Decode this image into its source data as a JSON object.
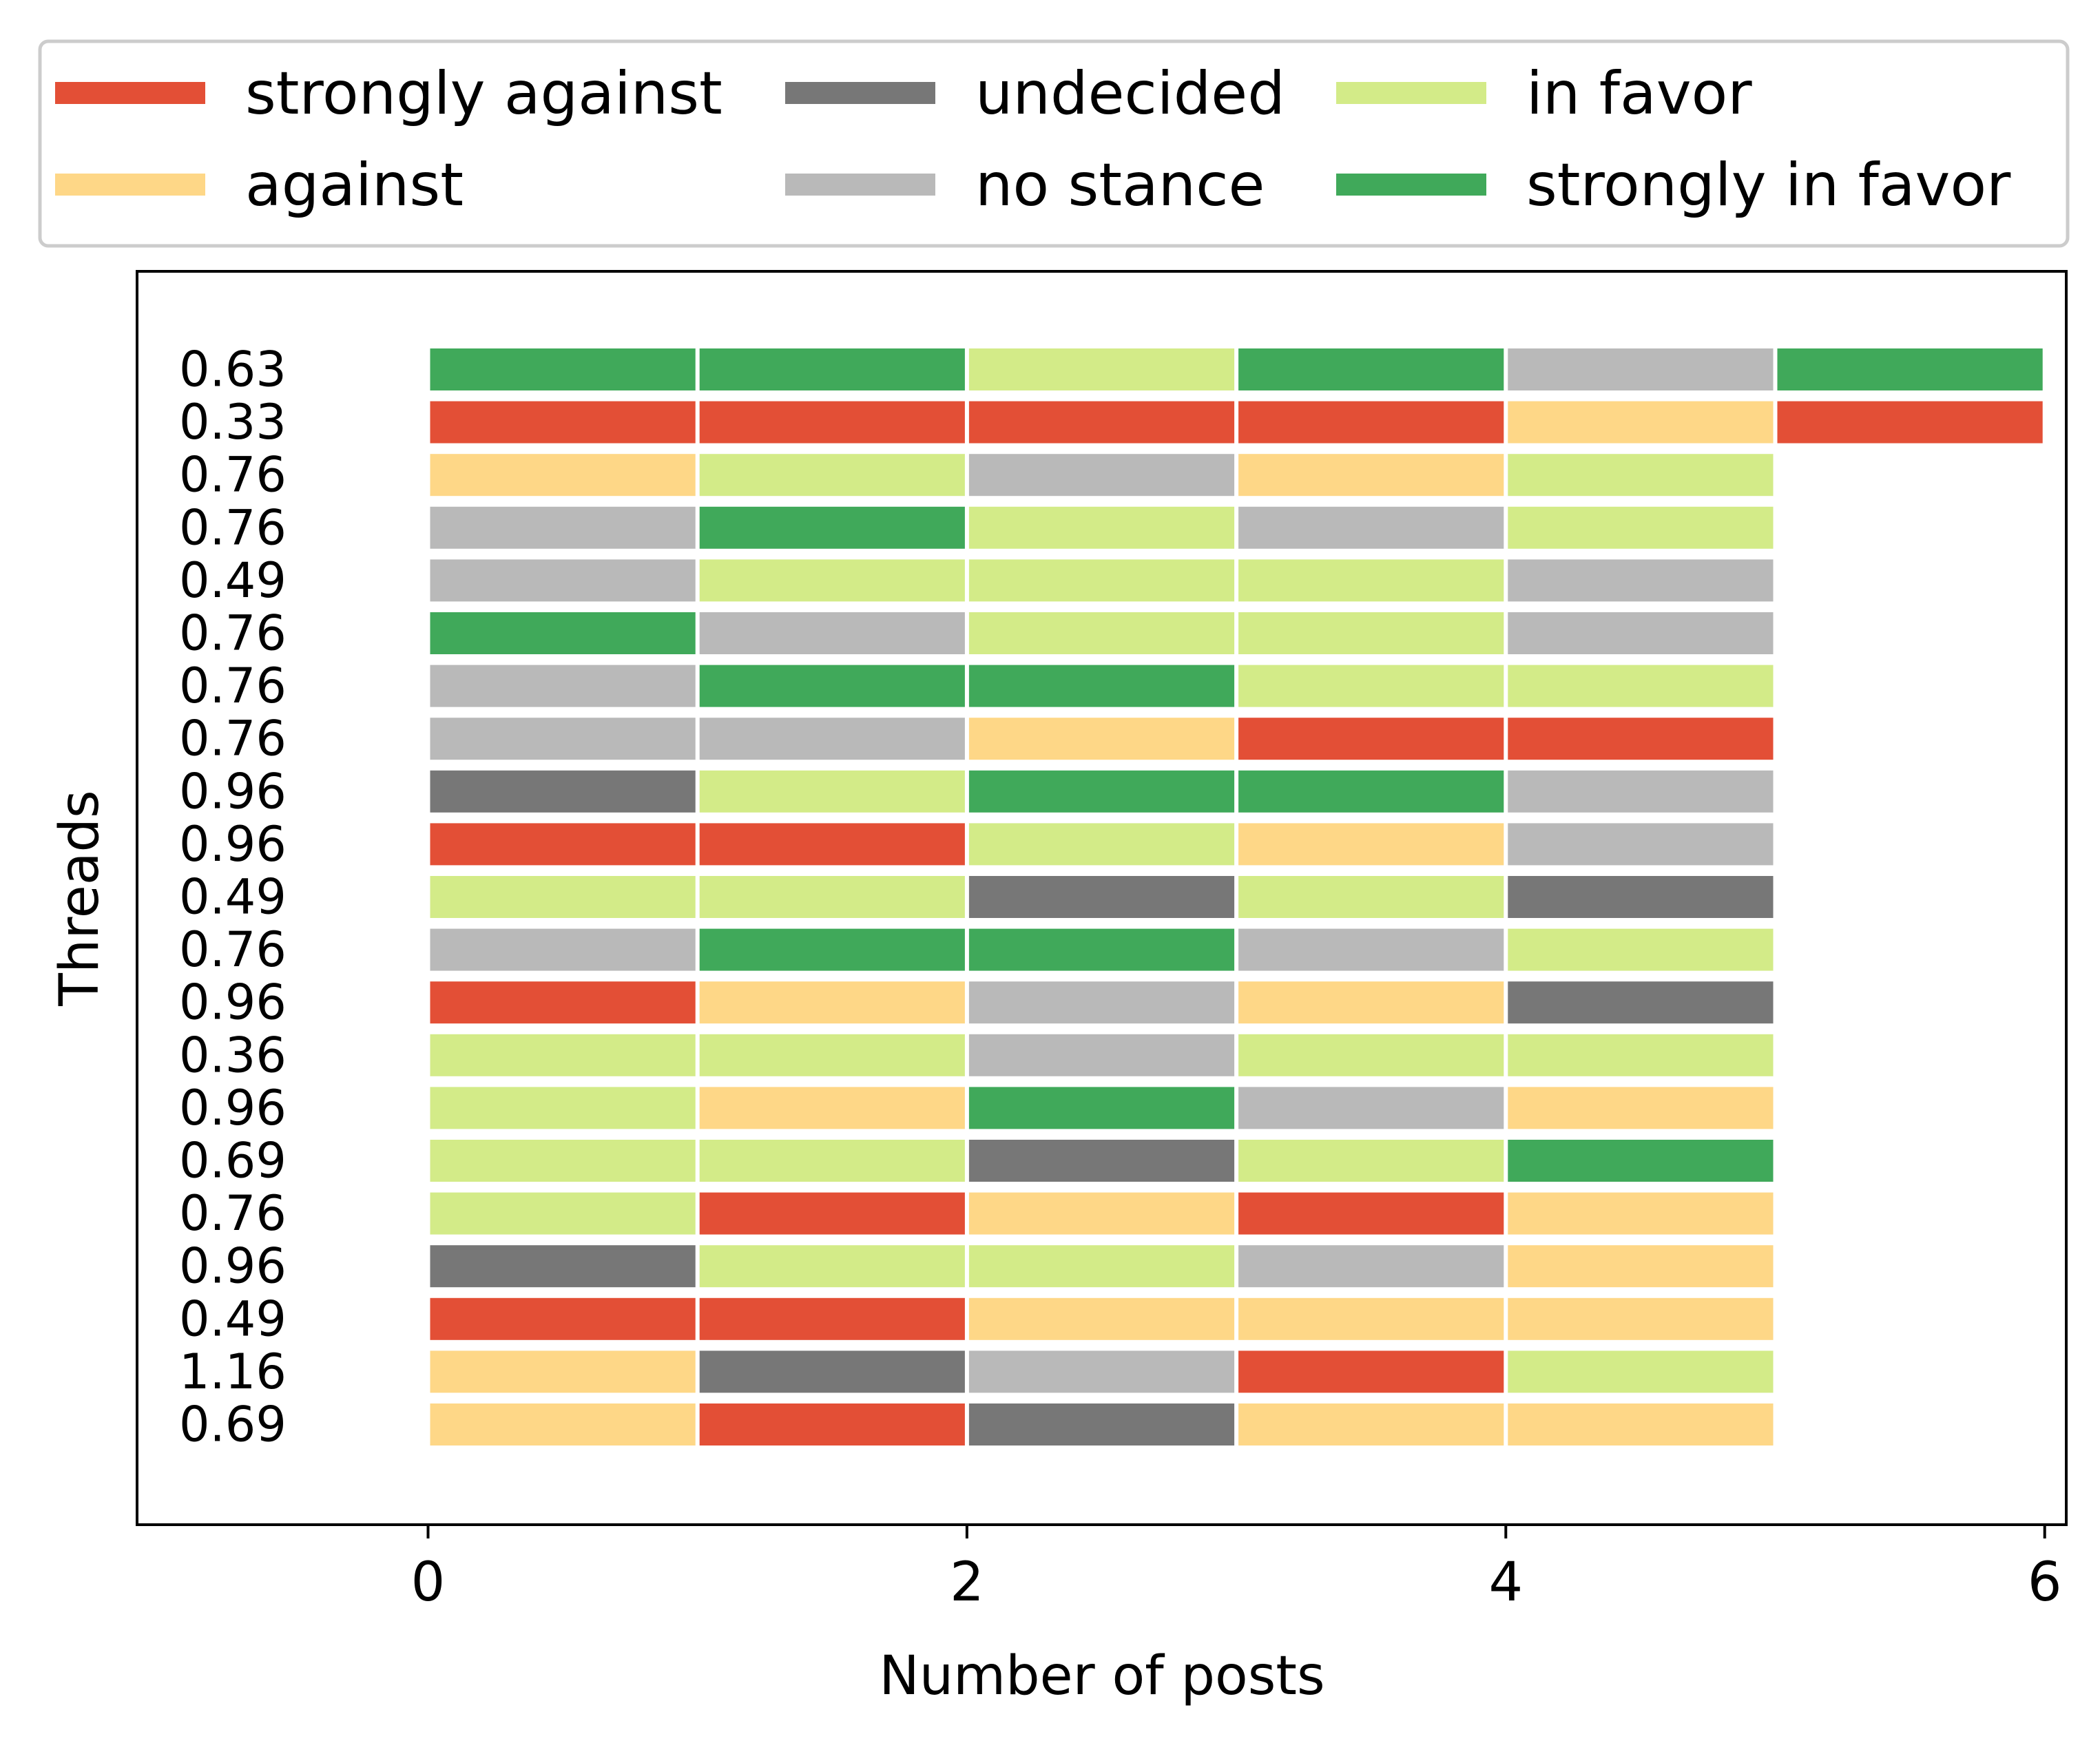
{
  "chart_data": {
    "type": "bar",
    "orientation": "horizontal-stacked-timeline",
    "title": "",
    "xlabel": "Number of posts",
    "ylabel": "Threads",
    "xlim": [
      -1.08,
      6.08
    ],
    "xticks": [
      0,
      2,
      4,
      6
    ],
    "grid": false,
    "legend_position": "top",
    "legend": [
      {
        "key": "strongly_against",
        "label": "strongly against",
        "color": "#e34f36"
      },
      {
        "key": "undecided",
        "label": "undecided",
        "color": "#777777"
      },
      {
        "key": "in_favor",
        "label": "in favor",
        "color": "#d3eb88"
      },
      {
        "key": "against",
        "label": "against",
        "color": "#fed787"
      },
      {
        "key": "no_stance",
        "label": "no stance",
        "color": "#b9b9b9"
      },
      {
        "key": "strongly_in_favor",
        "label": "strongly in favor",
        "color": "#40a95a"
      }
    ],
    "threads": [
      {
        "label": "0.63",
        "posts": [
          "strongly_in_favor",
          "strongly_in_favor",
          "in_favor",
          "strongly_in_favor",
          "no_stance",
          "strongly_in_favor"
        ]
      },
      {
        "label": "0.33",
        "posts": [
          "strongly_against",
          "strongly_against",
          "strongly_against",
          "strongly_against",
          "against",
          "strongly_against"
        ]
      },
      {
        "label": "0.76",
        "posts": [
          "against",
          "in_favor",
          "no_stance",
          "against",
          "in_favor"
        ]
      },
      {
        "label": "0.76",
        "posts": [
          "no_stance",
          "strongly_in_favor",
          "in_favor",
          "no_stance",
          "in_favor"
        ]
      },
      {
        "label": "0.49",
        "posts": [
          "no_stance",
          "in_favor",
          "in_favor",
          "in_favor",
          "no_stance"
        ]
      },
      {
        "label": "0.76",
        "posts": [
          "strongly_in_favor",
          "no_stance",
          "in_favor",
          "in_favor",
          "no_stance"
        ]
      },
      {
        "label": "0.76",
        "posts": [
          "no_stance",
          "strongly_in_favor",
          "strongly_in_favor",
          "in_favor",
          "in_favor"
        ]
      },
      {
        "label": "0.76",
        "posts": [
          "no_stance",
          "no_stance",
          "against",
          "strongly_against",
          "strongly_against"
        ]
      },
      {
        "label": "0.96",
        "posts": [
          "undecided",
          "in_favor",
          "strongly_in_favor",
          "strongly_in_favor",
          "no_stance"
        ]
      },
      {
        "label": "0.96",
        "posts": [
          "strongly_against",
          "strongly_against",
          "in_favor",
          "against",
          "no_stance"
        ]
      },
      {
        "label": "0.49",
        "posts": [
          "in_favor",
          "in_favor",
          "undecided",
          "in_favor",
          "undecided"
        ]
      },
      {
        "label": "0.76",
        "posts": [
          "no_stance",
          "strongly_in_favor",
          "strongly_in_favor",
          "no_stance",
          "in_favor"
        ]
      },
      {
        "label": "0.96",
        "posts": [
          "strongly_against",
          "against",
          "no_stance",
          "against",
          "undecided"
        ]
      },
      {
        "label": "0.36",
        "posts": [
          "in_favor",
          "in_favor",
          "no_stance",
          "in_favor",
          "in_favor"
        ]
      },
      {
        "label": "0.96",
        "posts": [
          "in_favor",
          "against",
          "strongly_in_favor",
          "no_stance",
          "against"
        ]
      },
      {
        "label": "0.69",
        "posts": [
          "in_favor",
          "in_favor",
          "undecided",
          "in_favor",
          "strongly_in_favor"
        ]
      },
      {
        "label": "0.76",
        "posts": [
          "in_favor",
          "strongly_against",
          "against",
          "strongly_against",
          "against"
        ]
      },
      {
        "label": "0.96",
        "posts": [
          "undecided",
          "in_favor",
          "in_favor",
          "no_stance",
          "against"
        ]
      },
      {
        "label": "0.49",
        "posts": [
          "strongly_against",
          "strongly_against",
          "against",
          "against",
          "against"
        ]
      },
      {
        "label": "1.16",
        "posts": [
          "against",
          "undecided",
          "no_stance",
          "strongly_against",
          "in_favor"
        ]
      },
      {
        "label": "0.69",
        "posts": [
          "against",
          "strongly_against",
          "undecided",
          "against",
          "against"
        ]
      }
    ]
  }
}
